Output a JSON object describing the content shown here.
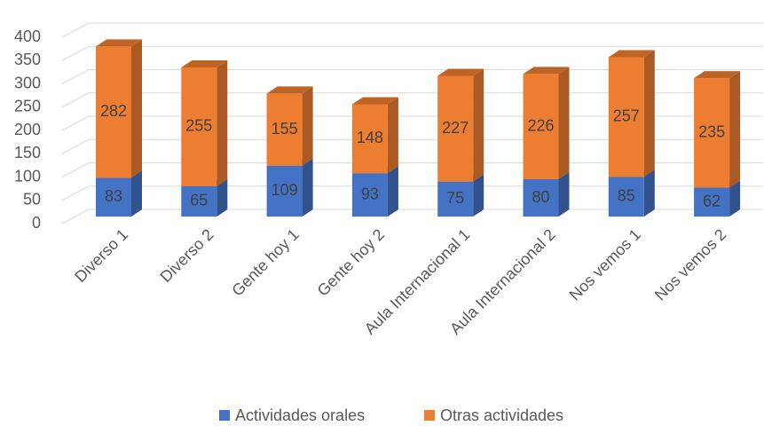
{
  "chart_data": {
    "type": "bar3d_stacked",
    "categories": [
      "Diverso 1",
      "Diverso 2",
      "Gente hoy 1",
      "Gente hoy 2",
      "Aula Internacional 1",
      "Aula Internacional 2",
      "Nos vemos 1",
      "Nos vemos 2"
    ],
    "series": [
      {
        "name": "Actividades orales",
        "color": "#4472c4",
        "values": [
          83,
          65,
          109,
          93,
          75,
          80,
          85,
          62
        ]
      },
      {
        "name": "Otras actividades",
        "color": "#ed7d31",
        "values": [
          282,
          255,
          155,
          148,
          227,
          226,
          257,
          235
        ]
      }
    ],
    "ylim": [
      0,
      400
    ],
    "yticks": [
      0,
      50,
      100,
      150,
      200,
      250,
      300,
      350,
      400
    ],
    "grid": true,
    "legend": "bottom"
  }
}
